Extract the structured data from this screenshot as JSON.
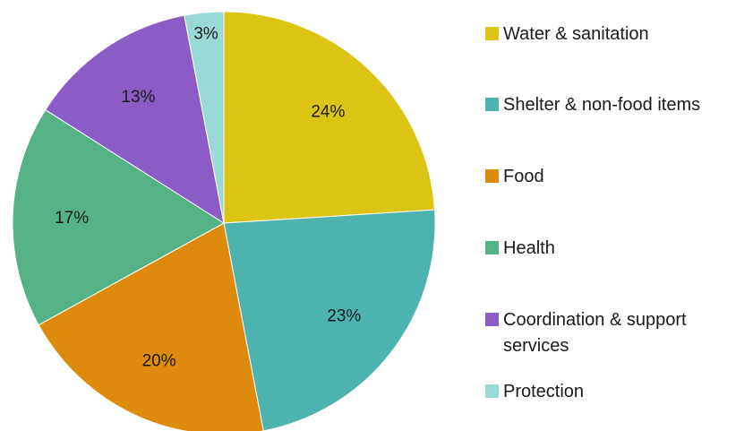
{
  "chart_data": {
    "type": "pie",
    "title": "",
    "categories": [
      "Water & sanitation",
      "Shelter & non-food items",
      "Food",
      "Health",
      "Coordination & support services",
      "Protection"
    ],
    "values": [
      24,
      23,
      20,
      17,
      13,
      3
    ],
    "labels": [
      "24%",
      "23%",
      "20%",
      "17%",
      "13%",
      "3%"
    ],
    "colors": [
      "#dcc415",
      "#4cb3ae",
      "#de8a0c",
      "#55b286",
      "#8b5cc6",
      "#99d9d6"
    ],
    "start_angle_deg": 0,
    "direction": "clockwise",
    "legend_position": "right"
  }
}
